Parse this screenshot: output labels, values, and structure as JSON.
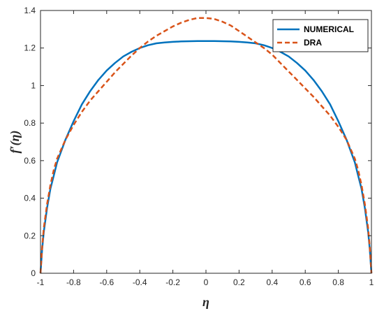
{
  "chart_data": {
    "type": "line",
    "xlabel": "η",
    "ylabel": "f′(η)",
    "xlim": [
      -1,
      1
    ],
    "ylim": [
      0,
      1.4
    ],
    "x_ticks": [
      "-1",
      "-0.8",
      "-0.6",
      "-0.4",
      "-0.2",
      "0",
      "0.2",
      "0.4",
      "0.6",
      "0.8",
      "1"
    ],
    "y_ticks": [
      "0",
      "0.2",
      "0.4",
      "0.6",
      "0.8",
      "1",
      "1.2",
      "1.4"
    ],
    "grid": false,
    "legend_position": "top-right",
    "series": [
      {
        "name": "NUMERICAL",
        "color": "#0072BD",
        "style": "solid",
        "x": [
          -1,
          -0.99,
          -0.98,
          -0.96,
          -0.94,
          -0.92,
          -0.9,
          -0.85,
          -0.8,
          -0.75,
          -0.7,
          -0.65,
          -0.6,
          -0.55,
          -0.5,
          -0.45,
          -0.4,
          -0.35,
          -0.3,
          -0.25,
          -0.2,
          -0.15,
          -0.1,
          -0.05,
          0,
          0.05,
          0.1,
          0.15,
          0.2,
          0.25,
          0.3,
          0.35,
          0.4,
          0.45,
          0.5,
          0.55,
          0.6,
          0.65,
          0.7,
          0.75,
          0.8,
          0.85,
          0.9,
          0.92,
          0.94,
          0.96,
          0.98,
          0.99,
          1
        ],
        "y": [
          0,
          0.13,
          0.22,
          0.35,
          0.45,
          0.52,
          0.59,
          0.71,
          0.81,
          0.9,
          0.97,
          1.03,
          1.08,
          1.12,
          1.155,
          1.18,
          1.2,
          1.215,
          1.225,
          1.23,
          1.233,
          1.235,
          1.236,
          1.237,
          1.237,
          1.237,
          1.236,
          1.235,
          1.233,
          1.23,
          1.225,
          1.215,
          1.2,
          1.18,
          1.155,
          1.12,
          1.08,
          1.03,
          0.97,
          0.9,
          0.81,
          0.71,
          0.59,
          0.52,
          0.45,
          0.35,
          0.22,
          0.13,
          0
        ]
      },
      {
        "name": "DRA",
        "color": "#D95319",
        "style": "dashed",
        "x": [
          -1,
          -0.99,
          -0.98,
          -0.96,
          -0.94,
          -0.92,
          -0.9,
          -0.85,
          -0.8,
          -0.75,
          -0.7,
          -0.65,
          -0.6,
          -0.55,
          -0.5,
          -0.45,
          -0.4,
          -0.35,
          -0.3,
          -0.25,
          -0.2,
          -0.15,
          -0.1,
          -0.05,
          0,
          0.05,
          0.1,
          0.15,
          0.2,
          0.25,
          0.3,
          0.35,
          0.4,
          0.45,
          0.5,
          0.55,
          0.6,
          0.65,
          0.7,
          0.75,
          0.8,
          0.85,
          0.9,
          0.92,
          0.94,
          0.96,
          0.98,
          0.99,
          1
        ],
        "y": [
          0,
          0.14,
          0.24,
          0.37,
          0.47,
          0.55,
          0.61,
          0.71,
          0.79,
          0.86,
          0.92,
          0.97,
          1.02,
          1.07,
          1.115,
          1.16,
          1.2,
          1.235,
          1.265,
          1.29,
          1.315,
          1.335,
          1.35,
          1.36,
          1.36,
          1.355,
          1.34,
          1.32,
          1.29,
          1.26,
          1.23,
          1.2,
          1.165,
          1.12,
          1.075,
          1.03,
          0.985,
          0.94,
          0.89,
          0.84,
          0.78,
          0.71,
          0.61,
          0.55,
          0.47,
          0.37,
          0.24,
          0.14,
          0
        ]
      }
    ]
  }
}
